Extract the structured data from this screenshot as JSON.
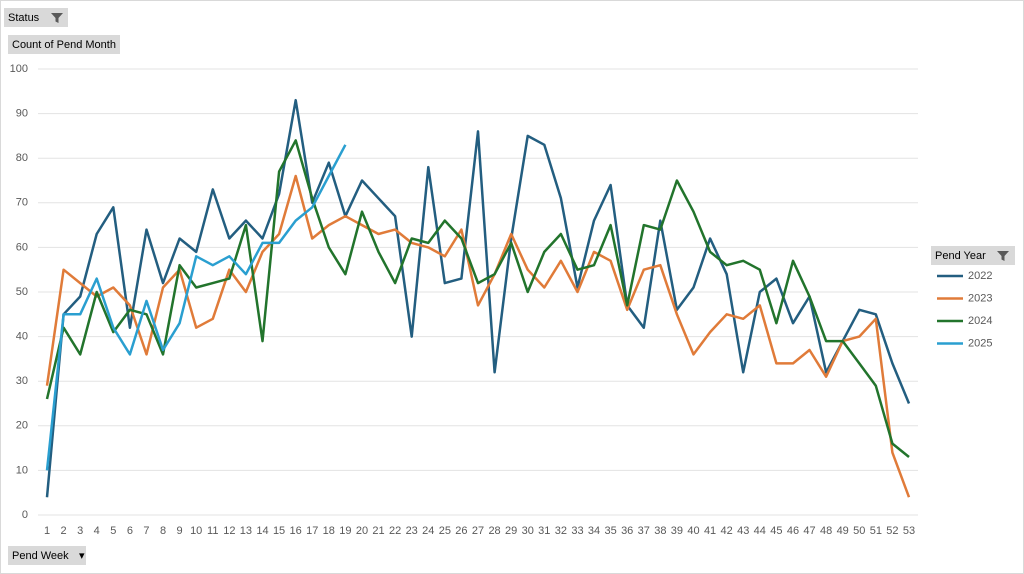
{
  "chart_data": {
    "type": "line",
    "field_buttons": {
      "filter": "Status",
      "values": "Count of Pend Month",
      "axis": "Pend Week",
      "legend": "Pend Year"
    },
    "categories": [
      "1",
      "2",
      "3",
      "4",
      "5",
      "6",
      "7",
      "8",
      "9",
      "10",
      "11",
      "12",
      "13",
      "14",
      "15",
      "16",
      "17",
      "18",
      "19",
      "20",
      "21",
      "22",
      "23",
      "24",
      "25",
      "26",
      "27",
      "28",
      "29",
      "30",
      "31",
      "32",
      "33",
      "34",
      "35",
      "36",
      "37",
      "38",
      "39",
      "40",
      "41",
      "42",
      "43",
      "44",
      "45",
      "46",
      "47",
      "48",
      "49",
      "50",
      "51",
      "52",
      "53"
    ],
    "series": [
      {
        "name": "2022",
        "color": "#235e80",
        "values": [
          4,
          45,
          49,
          63,
          69,
          42,
          64,
          52,
          62,
          59,
          73,
          62,
          66,
          62,
          72,
          93,
          70,
          79,
          67,
          75,
          71,
          67,
          40,
          78,
          52,
          53,
          86,
          32,
          62,
          85,
          83,
          71,
          51,
          66,
          74,
          47,
          42,
          66,
          46,
          51,
          62,
          54,
          32,
          50,
          53,
          43,
          49,
          32,
          39,
          46,
          45,
          34,
          25
        ]
      },
      {
        "name": "2023",
        "color": "#e07b39",
        "values": [
          29,
          55,
          52,
          49,
          51,
          47,
          36,
          51,
          55,
          42,
          44,
          55,
          50,
          59,
          63,
          76,
          62,
          65,
          67,
          65,
          63,
          64,
          61,
          60,
          58,
          64,
          47,
          54,
          63,
          55,
          51,
          57,
          50,
          59,
          57,
          46,
          55,
          56,
          45,
          36,
          41,
          45,
          44,
          47,
          34,
          34,
          37,
          31,
          39,
          40,
          44,
          14,
          4
        ]
      },
      {
        "name": "2024",
        "color": "#22742c",
        "values": [
          26,
          42,
          36,
          50,
          41,
          46,
          45,
          36,
          56,
          51,
          52,
          53,
          65,
          39,
          77,
          84,
          71,
          60,
          54,
          68,
          59,
          52,
          62,
          61,
          66,
          62,
          52,
          54,
          61,
          50,
          59,
          63,
          55,
          56,
          65,
          47,
          65,
          64,
          75,
          68,
          59,
          56,
          57,
          55,
          43,
          57,
          49,
          39,
          39,
          34,
          29,
          16,
          13
        ]
      },
      {
        "name": "2025",
        "color": "#2a9fd0",
        "values": [
          10,
          45,
          45,
          53,
          42,
          36,
          48,
          37,
          43,
          58,
          56,
          58,
          54,
          61,
          61,
          66,
          69,
          76,
          83,
          null,
          null,
          null,
          null,
          null,
          null,
          null,
          null,
          null,
          null,
          null,
          null,
          null,
          null,
          null,
          null,
          null,
          null,
          null,
          null,
          null,
          null,
          null,
          null,
          null,
          null,
          null,
          null,
          null,
          null,
          null,
          null,
          null,
          null
        ]
      }
    ],
    "ylim": [
      0,
      100
    ],
    "yticks": [
      0,
      10,
      20,
      30,
      40,
      50,
      60,
      70,
      80,
      90,
      100
    ],
    "grid": true,
    "legend": "right"
  }
}
